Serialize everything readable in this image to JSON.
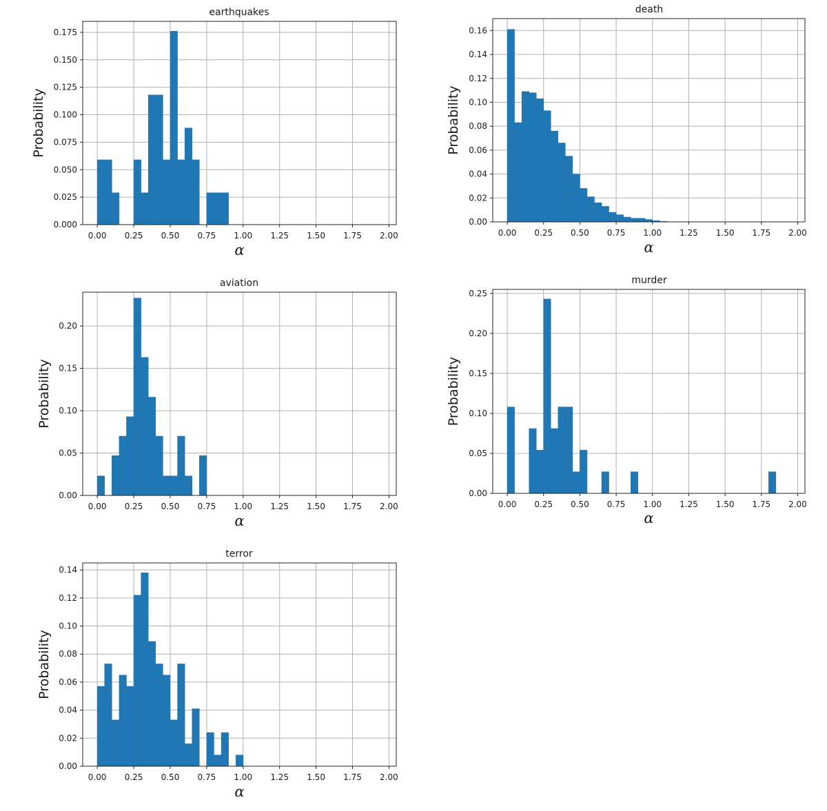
{
  "figure": {
    "bar_color": "#1f77b4",
    "grid_color": "#b0b0b0",
    "axis_color": "#222222"
  },
  "chart_data": [
    {
      "type": "bar",
      "title": "earthquakes",
      "xlabel": "α",
      "ylabel": "Probability",
      "xlim": [
        -0.1,
        2.05
      ],
      "ylim": [
        0,
        0.185
      ],
      "xticks": [
        0.0,
        0.25,
        0.5,
        0.75,
        1.0,
        1.25,
        1.5,
        1.75,
        2.0
      ],
      "xtick_labels": [
        "0.00",
        "0.25",
        "0.50",
        "0.75",
        "1.00",
        "1.25",
        "1.50",
        "1.75",
        "2.00"
      ],
      "yticks": [
        0,
        0.025,
        0.05,
        0.075,
        0.1,
        0.125,
        0.15,
        0.175
      ],
      "ytick_labels": [
        "0.000",
        "0.025",
        "0.050",
        "0.075",
        "0.100",
        "0.125",
        "0.150",
        "0.175"
      ],
      "bin_width": 0.05,
      "bin_starts": [
        0.0,
        0.05,
        0.1,
        0.25,
        0.3,
        0.35,
        0.4,
        0.45,
        0.5,
        0.55,
        0.6,
        0.65,
        0.75,
        0.8,
        0.85
      ],
      "values": [
        0.059,
        0.059,
        0.029,
        0.059,
        0.029,
        0.118,
        0.118,
        0.059,
        0.176,
        0.059,
        0.088,
        0.059,
        0.029,
        0.029,
        0.029
      ],
      "grid": true
    },
    {
      "type": "bar",
      "title": "death",
      "xlabel": "α",
      "ylabel": "Probability",
      "xlim": [
        -0.1,
        2.05
      ],
      "ylim": [
        0,
        0.17
      ],
      "xticks": [
        0.0,
        0.25,
        0.5,
        0.75,
        1.0,
        1.25,
        1.5,
        1.75,
        2.0
      ],
      "xtick_labels": [
        "0.00",
        "0.25",
        "0.50",
        "0.75",
        "1.00",
        "1.25",
        "1.50",
        "1.75",
        "2.00"
      ],
      "yticks": [
        0,
        0.02,
        0.04,
        0.06,
        0.08,
        0.1,
        0.12,
        0.14,
        0.16
      ],
      "ytick_labels": [
        "0.00",
        "0.02",
        "0.04",
        "0.06",
        "0.08",
        "0.10",
        "0.12",
        "0.14",
        "0.16"
      ],
      "bin_width": 0.05,
      "bin_starts": [
        0.0,
        0.05,
        0.1,
        0.15,
        0.2,
        0.25,
        0.3,
        0.35,
        0.4,
        0.45,
        0.5,
        0.55,
        0.6,
        0.65,
        0.7,
        0.75,
        0.8,
        0.85,
        0.9,
        0.95,
        1.0,
        1.05
      ],
      "values": [
        0.161,
        0.083,
        0.109,
        0.108,
        0.103,
        0.093,
        0.076,
        0.066,
        0.055,
        0.04,
        0.028,
        0.021,
        0.016,
        0.013,
        0.008,
        0.006,
        0.004,
        0.003,
        0.003,
        0.002,
        0.001,
        0.0005
      ],
      "grid": true
    },
    {
      "type": "bar",
      "title": "aviation",
      "xlabel": "α",
      "ylabel": "Probability",
      "xlim": [
        -0.1,
        2.05
      ],
      "ylim": [
        0,
        0.24
      ],
      "xticks": [
        0.0,
        0.25,
        0.5,
        0.75,
        1.0,
        1.25,
        1.5,
        1.75,
        2.0
      ],
      "xtick_labels": [
        "0.00",
        "0.25",
        "0.50",
        "0.75",
        "1.00",
        "1.25",
        "1.50",
        "1.75",
        "2.00"
      ],
      "yticks": [
        0,
        0.05,
        0.1,
        0.15,
        0.2
      ],
      "ytick_labels": [
        "0.00",
        "0.05",
        "0.10",
        "0.15",
        "0.20"
      ],
      "bin_width": 0.05,
      "bin_starts": [
        0.0,
        0.1,
        0.15,
        0.2,
        0.25,
        0.3,
        0.35,
        0.4,
        0.45,
        0.5,
        0.55,
        0.6,
        0.7
      ],
      "values": [
        0.023,
        0.047,
        0.07,
        0.093,
        0.233,
        0.163,
        0.116,
        0.07,
        0.023,
        0.023,
        0.07,
        0.023,
        0.047
      ],
      "grid": true
    },
    {
      "type": "bar",
      "title": "murder",
      "xlabel": "α",
      "ylabel": "Probability",
      "xlim": [
        -0.1,
        2.05
      ],
      "ylim": [
        0,
        0.255
      ],
      "xticks": [
        0.0,
        0.25,
        0.5,
        0.75,
        1.0,
        1.25,
        1.5,
        1.75,
        2.0
      ],
      "xtick_labels": [
        "0.00",
        "0.25",
        "0.50",
        "0.75",
        "1.00",
        "1.25",
        "1.50",
        "1.75",
        "2.00"
      ],
      "yticks": [
        0,
        0.05,
        0.1,
        0.15,
        0.2,
        0.25
      ],
      "ytick_labels": [
        "0.00",
        "0.05",
        "0.10",
        "0.15",
        "0.20",
        "0.25"
      ],
      "bin_width": 0.05,
      "bin_starts": [
        0.0,
        0.15,
        0.2,
        0.25,
        0.3,
        0.35,
        0.4,
        0.45,
        0.5,
        0.65,
        0.85,
        1.8
      ],
      "values": [
        0.108,
        0.081,
        0.054,
        0.243,
        0.081,
        0.108,
        0.108,
        0.027,
        0.054,
        0.027,
        0.027,
        0.027
      ],
      "grid": true
    },
    {
      "type": "bar",
      "title": "terror",
      "xlabel": "α",
      "ylabel": "Probability",
      "xlim": [
        -0.1,
        2.05
      ],
      "ylim": [
        0,
        0.145
      ],
      "xticks": [
        0.0,
        0.25,
        0.5,
        0.75,
        1.0,
        1.25,
        1.5,
        1.75,
        2.0
      ],
      "xtick_labels": [
        "0.00",
        "0.25",
        "0.50",
        "0.75",
        "1.00",
        "1.25",
        "1.50",
        "1.75",
        "2.00"
      ],
      "yticks": [
        0,
        0.02,
        0.04,
        0.06,
        0.08,
        0.1,
        0.12,
        0.14
      ],
      "ytick_labels": [
        "0.00",
        "0.02",
        "0.04",
        "0.06",
        "0.08",
        "0.10",
        "0.12",
        "0.14"
      ],
      "bin_width": 0.05,
      "bin_starts": [
        0.0,
        0.05,
        0.1,
        0.15,
        0.2,
        0.25,
        0.3,
        0.35,
        0.4,
        0.45,
        0.5,
        0.55,
        0.6,
        0.65,
        0.75,
        0.8,
        0.85,
        0.95
      ],
      "values": [
        0.057,
        0.073,
        0.033,
        0.065,
        0.057,
        0.122,
        0.138,
        0.089,
        0.073,
        0.065,
        0.033,
        0.073,
        0.016,
        0.041,
        0.024,
        0.008,
        0.024,
        0.008
      ],
      "grid": true
    }
  ]
}
